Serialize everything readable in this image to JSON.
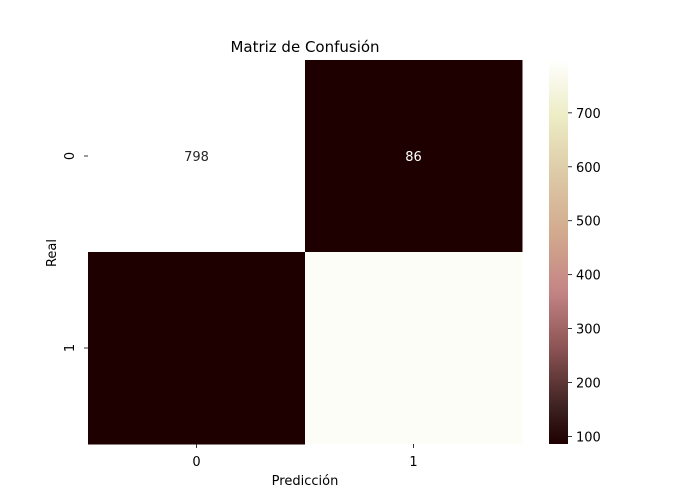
{
  "chart_data": {
    "type": "heatmap",
    "title": "Matriz de Confusión",
    "xlabel": "Predicción",
    "ylabel": "Real",
    "x_categories": [
      "0",
      "1"
    ],
    "y_categories": [
      "0",
      "1"
    ],
    "matrix": [
      [
        798,
        86
      ],
      [
        86,
        781
      ]
    ],
    "annotations": [
      [
        "798",
        "86"
      ],
      [
        "",
        ""
      ]
    ],
    "colorbar": {
      "min": 86,
      "max": 798,
      "ticks": [
        100,
        200,
        300,
        400,
        500,
        600,
        700
      ],
      "tick_labels": [
        "100",
        "200",
        "300",
        "400",
        "500",
        "600",
        "700"
      ],
      "colormap": "pink"
    },
    "grid": false
  }
}
